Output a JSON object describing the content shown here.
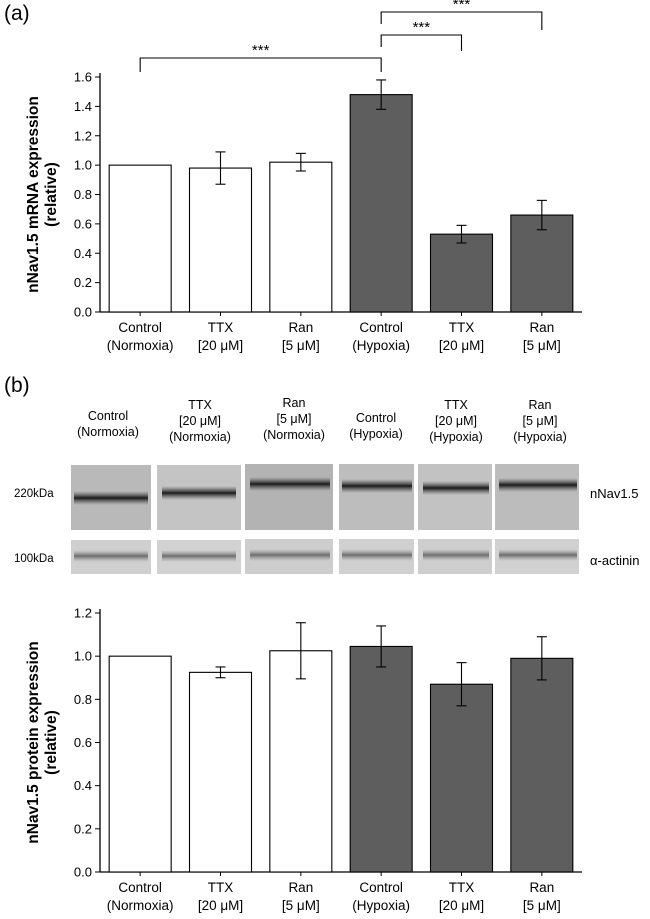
{
  "panel_a": {
    "label": "(a)"
  },
  "panel_b": {
    "label": "(b)"
  },
  "colors": {
    "normoxia_fill": "#ffffff",
    "hypoxia_fill": "#5e5e5e",
    "stroke": "#000000"
  },
  "chart_data": [
    {
      "type": "bar",
      "ylabel": "nNav1.5 mRNA expression (relative)",
      "ylabel_lines": [
        "nNav1.5 mRNA expression",
        "(relative)"
      ],
      "ylim": [
        0,
        1.6
      ],
      "yticks": [
        "0.0",
        "0.2",
        "0.4",
        "0.6",
        "0.8",
        "1.0",
        "1.2",
        "1.4",
        "1.6"
      ],
      "categories": [
        [
          "Control",
          "(Normoxia)"
        ],
        [
          "TTX",
          "[20 μM]"
        ],
        [
          "Ran",
          "[5 μM]"
        ],
        [
          "Control",
          "(Hypoxia)"
        ],
        [
          "TTX",
          "[20 μM]"
        ],
        [
          "Ran",
          "[5 μM]"
        ]
      ],
      "values": [
        1.0,
        0.98,
        1.02,
        1.48,
        0.53,
        0.66
      ],
      "errors": [
        0.0,
        0.11,
        0.06,
        0.1,
        0.06,
        0.1
      ],
      "fills": [
        "normoxia",
        "normoxia",
        "normoxia",
        "hypoxia",
        "hypoxia",
        "hypoxia"
      ],
      "significance": [
        {
          "from": 0,
          "to": 3,
          "label": "***"
        },
        {
          "from": 3,
          "to": 4,
          "label": "***"
        },
        {
          "from": 3,
          "to": 5,
          "label": "***"
        }
      ],
      "grid": false
    },
    {
      "type": "bar",
      "ylabel": "nNav1.5 protein expression (relative)",
      "ylabel_lines": [
        "nNav1.5 protein expression",
        "(relative)"
      ],
      "ylim": [
        0,
        1.2
      ],
      "yticks": [
        "0.0",
        "0.2",
        "0.4",
        "0.6",
        "0.8",
        "1.0",
        "1.2"
      ],
      "categories": [
        [
          "Control",
          "(Normoxia)"
        ],
        [
          "TTX",
          "[20 μM]"
        ],
        [
          "Ran",
          "[5 μM]"
        ],
        [
          "Control",
          "(Hypoxia)"
        ],
        [
          "TTX",
          "[20 μM]"
        ],
        [
          "Ran",
          "[5 μM]"
        ]
      ],
      "values": [
        1.0,
        0.925,
        1.025,
        1.045,
        0.87,
        0.99
      ],
      "errors": [
        0.0,
        0.025,
        0.13,
        0.095,
        0.1,
        0.1
      ],
      "fills": [
        "normoxia",
        "normoxia",
        "normoxia",
        "hypoxia",
        "hypoxia",
        "hypoxia"
      ],
      "grid": false
    }
  ],
  "blot": {
    "lanes": [
      [
        "Control",
        "(Normoxia)"
      ],
      [
        "TTX",
        "[20 μM]",
        "(Normoxia)"
      ],
      [
        "Ran",
        "[5 μM]",
        "(Normoxia)"
      ],
      [
        "Control",
        "(Hypoxia)"
      ],
      [
        "TTX",
        "[20 μM]",
        "(Hypoxia)"
      ],
      [
        "Ran",
        "[5 μM]",
        "(Hypoxia)"
      ]
    ],
    "markers": {
      "upper": "220kDa",
      "lower": "100kDa"
    },
    "bands": {
      "upper": "nNav1.5",
      "lower": "α-actinin"
    }
  }
}
